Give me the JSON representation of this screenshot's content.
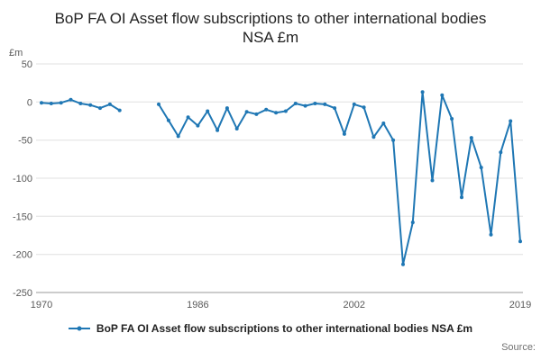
{
  "title": "BoP FA OI Asset flow subscriptions to other international bodies NSA £m",
  "axis": {
    "y_unit_label": "£m"
  },
  "legend": {
    "label": "BoP FA OI Asset flow subscriptions to other international bodies NSA £m"
  },
  "source_label": "Source:",
  "colors": {
    "line": "#1f77b4",
    "grid": "#e0e0e0",
    "axis": "#999999",
    "tick_text": "#595959",
    "title_text": "#222222"
  },
  "chart_data": {
    "type": "line",
    "title": "BoP FA OI Asset flow subscriptions to other international bodies NSA £m",
    "xlabel": "",
    "ylabel": "£m",
    "ylim": [
      -250,
      50
    ],
    "yticks": [
      50,
      0,
      -50,
      -100,
      -150,
      -200,
      -250
    ],
    "xticks": [
      1970,
      1986,
      2002,
      2019
    ],
    "grid": true,
    "legend_position": "bottom",
    "markers": true,
    "x": [
      1970,
      1971,
      1972,
      1973,
      1974,
      1975,
      1976,
      1977,
      1978,
      1979,
      1980,
      1981,
      1982,
      1983,
      1984,
      1985,
      1986,
      1987,
      1988,
      1989,
      1990,
      1991,
      1992,
      1993,
      1994,
      1995,
      1996,
      1997,
      1998,
      1999,
      2000,
      2001,
      2002,
      2003,
      2004,
      2005,
      2006,
      2007,
      2008,
      2009,
      2010,
      2011,
      2012,
      2013,
      2014,
      2015,
      2016,
      2017,
      2018,
      2019
    ],
    "series": [
      {
        "name": "BoP FA OI Asset flow subscriptions to other international bodies NSA £m",
        "values": [
          -1,
          -2,
          -1,
          3,
          -2,
          -4,
          -8,
          -3,
          -11,
          null,
          null,
          null,
          -3,
          -24,
          -45,
          -20,
          -31,
          -12,
          -37,
          -8,
          -35,
          -13,
          -16,
          -10,
          -14,
          -12,
          -2,
          -5,
          -2,
          -3,
          -8,
          -42,
          -3,
          -7,
          -46,
          -28,
          -50,
          -213,
          -158,
          13,
          -103,
          9,
          -22,
          -125,
          -47,
          -86,
          -174,
          -66,
          -25,
          -183
        ]
      }
    ]
  }
}
